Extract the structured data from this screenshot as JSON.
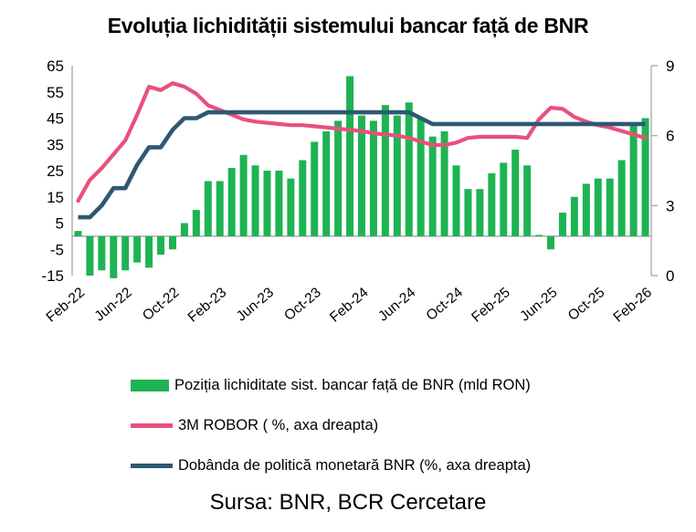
{
  "title": "Evoluția lichidității sistemului bancar față de BNR",
  "source": "Sursa: BNR, BCR Cercetare",
  "colors": {
    "bars": "#1EB353",
    "robor": "#E8517B",
    "policy": "#2D5972",
    "axis": "#A6A6A6",
    "zero_line": "#9A9A9A",
    "text": "#000000"
  },
  "legend": [
    {
      "id": "bars",
      "label": "Poziția lichiditate sist. bancar față de BNR (mld RON)"
    },
    {
      "id": "robor",
      "label": "3M ROBOR ( %, axa dreapta)"
    },
    {
      "id": "policy",
      "label": "Dobânda de politică monetară BNR (%, axa dreapta)"
    }
  ],
  "chart_data": {
    "type": "bar+line combo",
    "x_tick_labels": [
      "Feb-22",
      "Jun-22",
      "Oct-22",
      "Feb-23",
      "Jun-23",
      "Oct-23",
      "Feb-24",
      "Jun-24",
      "Oct-24",
      "Feb-25",
      "Jun-25",
      "Oct-25",
      "Feb-26"
    ],
    "x_tick_every": 4,
    "months": [
      "Feb-22",
      "Mar-22",
      "Apr-22",
      "May-22",
      "Jun-22",
      "Jul-22",
      "Aug-22",
      "Sep-22",
      "Oct-22",
      "Nov-22",
      "Dec-22",
      "Jan-23",
      "Feb-23",
      "Mar-23",
      "Apr-23",
      "May-23",
      "Jun-23",
      "Jul-23",
      "Aug-23",
      "Sep-23",
      "Oct-23",
      "Nov-23",
      "Dec-23",
      "Jan-24",
      "Feb-24",
      "Mar-24",
      "Apr-24",
      "May-24",
      "Jun-24",
      "Jul-24",
      "Aug-24",
      "Sep-24",
      "Oct-24",
      "Nov-24",
      "Dec-24",
      "Jan-25",
      "Feb-25",
      "Mar-25",
      "Apr-25",
      "May-25",
      "Jun-25",
      "Jul-25",
      "Aug-25",
      "Sep-25",
      "Oct-25",
      "Nov-25",
      "Dec-25",
      "Jan-26",
      "Feb-26"
    ],
    "series": [
      {
        "name": "Poziția lichiditate sist. bancar față de BNR (mld RON)",
        "kind": "bar",
        "axis": "left",
        "values": [
          2,
          -15,
          -13,
          -16,
          -13,
          -10,
          -12,
          -7,
          -5,
          5,
          10,
          21,
          21,
          26,
          31,
          27,
          25,
          25,
          22,
          29,
          36,
          40,
          44,
          61,
          46,
          44,
          50,
          46,
          51,
          45,
          38,
          40,
          27,
          18,
          18,
          24,
          28,
          33,
          27,
          0.5,
          -5,
          9,
          15,
          20,
          22,
          22,
          29,
          43,
          45
        ]
      },
      {
        "name": "3M ROBOR ( %, axa dreapta)",
        "kind": "line",
        "axis": "right",
        "values": [
          3.2,
          4.1,
          4.6,
          5.2,
          5.8,
          6.9,
          8.1,
          7.95,
          8.25,
          8.1,
          7.8,
          7.3,
          7.1,
          6.9,
          6.7,
          6.6,
          6.55,
          6.5,
          6.45,
          6.45,
          6.4,
          6.35,
          6.3,
          6.25,
          6.2,
          6.1,
          6.05,
          6.0,
          5.9,
          5.75,
          5.6,
          5.6,
          5.7,
          5.9,
          5.95,
          5.95,
          5.95,
          5.95,
          5.9,
          6.7,
          7.2,
          7.15,
          6.8,
          6.6,
          6.45,
          6.35,
          6.2,
          6.05,
          5.9
        ]
      },
      {
        "name": "Dobânda de politică monetară BNR (%, axa dreapta)",
        "kind": "line",
        "axis": "right",
        "values": [
          2.5,
          2.5,
          3.0,
          3.75,
          3.75,
          4.75,
          5.5,
          5.5,
          6.25,
          6.75,
          6.75,
          7.0,
          7.0,
          7.0,
          7.0,
          7.0,
          7.0,
          7.0,
          7.0,
          7.0,
          7.0,
          7.0,
          7.0,
          7.0,
          7.0,
          7.0,
          7.0,
          7.0,
          7.0,
          6.75,
          6.5,
          6.5,
          6.5,
          6.5,
          6.5,
          6.5,
          6.5,
          6.5,
          6.5,
          6.5,
          6.5,
          6.5,
          6.5,
          6.5,
          6.5,
          6.5,
          6.5,
          6.5,
          6.5
        ]
      }
    ],
    "left_axis": {
      "min": -15,
      "max": 65,
      "ticks": [
        65,
        55,
        45,
        35,
        25,
        15,
        5,
        -5,
        -15
      ]
    },
    "right_axis": {
      "min": 0,
      "max": 9,
      "ticks": [
        9,
        6,
        3,
        0
      ]
    },
    "grid": false,
    "legend_position": "bottom-left"
  }
}
